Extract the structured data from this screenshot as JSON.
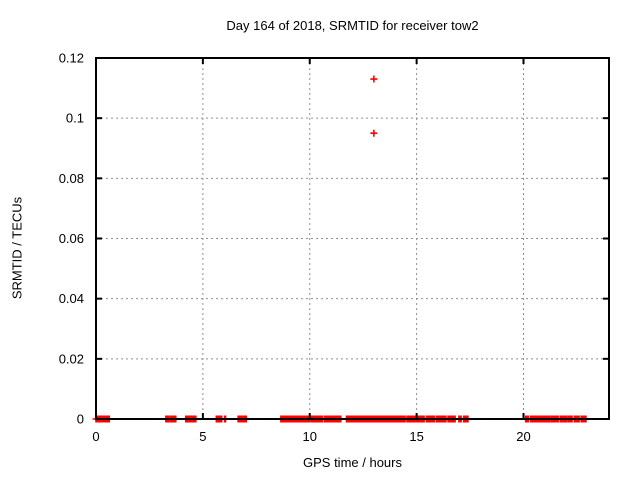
{
  "window": {
    "background": "#ffffff"
  },
  "colors": {
    "marker": "#ff0000",
    "grid": "#909090",
    "axis": "#000000",
    "text": "#000000"
  },
  "chart_data": {
    "type": "scatter",
    "title": "Day 164 of 2018, SRMTID for receiver tow2",
    "xlabel": "GPS time / hours",
    "ylabel": "SRMTID / TECUs",
    "xlim": [
      0,
      24
    ],
    "ylim": [
      0,
      0.12
    ],
    "grid": true,
    "legend": "none",
    "marker": "plus",
    "xticks": {
      "values": [
        0,
        5,
        10,
        15,
        20
      ],
      "labels": [
        "0",
        "5",
        "10",
        "15",
        "20"
      ]
    },
    "yticks": {
      "values": [
        0,
        0.02,
        0.04,
        0.06,
        0.08,
        0.1,
        0.12
      ],
      "labels": [
        "0",
        "0.02",
        "0.04",
        "0.06",
        "0.08",
        "0.1",
        "0.12"
      ]
    },
    "series": [
      {
        "name": "SRMTID",
        "color": "#ff0000",
        "outlier_points": [
          {
            "x": 13.0,
            "y": 0.113
          },
          {
            "x": 13.0,
            "y": 0.095
          }
        ],
        "near_zero_value": 0.0,
        "near_zero_runs_hours": [
          [
            0.0,
            0.62
          ],
          [
            3.27,
            3.42
          ],
          [
            3.5,
            3.73
          ],
          [
            4.2,
            4.4
          ],
          [
            4.45,
            4.67
          ],
          [
            5.63,
            5.73
          ],
          [
            5.78,
            5.88
          ],
          [
            6.02,
            6.06
          ],
          [
            6.65,
            6.86
          ],
          [
            6.92,
            7.03
          ],
          [
            8.65,
            8.88
          ],
          [
            8.95,
            9.12
          ],
          [
            9.17,
            9.62
          ],
          [
            9.67,
            10.0
          ],
          [
            10.08,
            10.32
          ],
          [
            10.38,
            10.6
          ],
          [
            10.7,
            11.13
          ],
          [
            11.17,
            11.45
          ],
          [
            11.72,
            13.18
          ],
          [
            13.24,
            13.48
          ],
          [
            13.53,
            14.2
          ],
          [
            14.26,
            14.46
          ],
          [
            14.55,
            14.72
          ],
          [
            14.78,
            14.95
          ],
          [
            15.02,
            15.35
          ],
          [
            15.46,
            15.83
          ],
          [
            15.93,
            16.37
          ],
          [
            16.47,
            16.8
          ],
          [
            16.98,
            17.08
          ],
          [
            17.2,
            17.4
          ],
          [
            20.1,
            20.22
          ],
          [
            20.33,
            20.72
          ],
          [
            20.78,
            21.0
          ],
          [
            21.05,
            21.22
          ],
          [
            21.3,
            21.62
          ],
          [
            21.72,
            22.0
          ],
          [
            22.08,
            22.27
          ],
          [
            22.38,
            22.6
          ],
          [
            22.7,
            22.92
          ]
        ]
      }
    ]
  }
}
